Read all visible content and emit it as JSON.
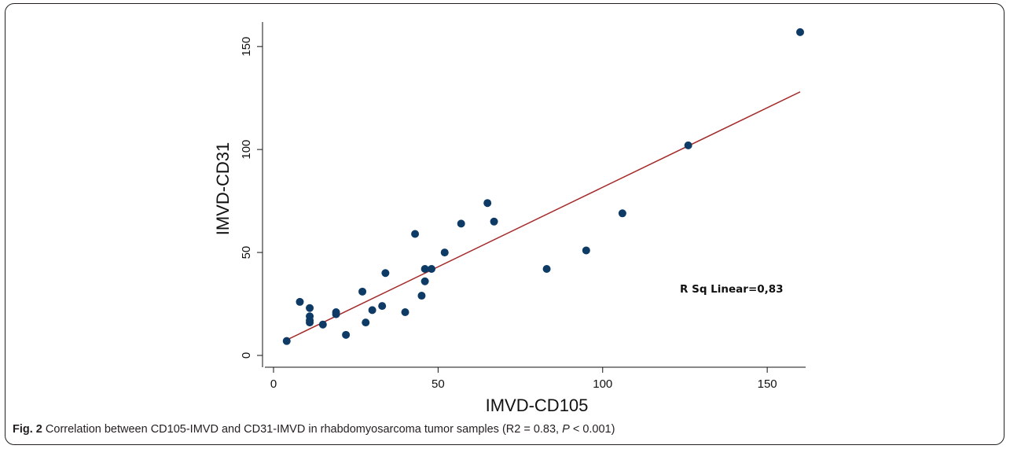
{
  "chart_data": {
    "type": "scatter",
    "xlabel": "IMVD-CD105",
    "ylabel": "IMVD-CD31",
    "xlim": [
      0,
      160
    ],
    "ylim": [
      0,
      160
    ],
    "x_ticks": [
      0,
      50,
      100,
      150
    ],
    "y_ticks": [
      0,
      50,
      100,
      150
    ],
    "grid": false,
    "point_color": "#0d3b66",
    "line_color": "#a52a2a",
    "annotation": "R Sq Linear=0,83",
    "points": [
      {
        "x": 4,
        "y": 7
      },
      {
        "x": 8,
        "y": 26
      },
      {
        "x": 11,
        "y": 19
      },
      {
        "x": 11,
        "y": 23
      },
      {
        "x": 11,
        "y": 17
      },
      {
        "x": 11,
        "y": 16
      },
      {
        "x": 15,
        "y": 15
      },
      {
        "x": 19,
        "y": 20
      },
      {
        "x": 19,
        "y": 21
      },
      {
        "x": 22,
        "y": 10
      },
      {
        "x": 27,
        "y": 31
      },
      {
        "x": 28,
        "y": 16
      },
      {
        "x": 30,
        "y": 22
      },
      {
        "x": 33,
        "y": 24
      },
      {
        "x": 34,
        "y": 40
      },
      {
        "x": 40,
        "y": 21
      },
      {
        "x": 43,
        "y": 59
      },
      {
        "x": 45,
        "y": 29
      },
      {
        "x": 46,
        "y": 42
      },
      {
        "x": 46,
        "y": 36
      },
      {
        "x": 48,
        "y": 42
      },
      {
        "x": 52,
        "y": 50
      },
      {
        "x": 57,
        "y": 64
      },
      {
        "x": 65,
        "y": 74
      },
      {
        "x": 67,
        "y": 65
      },
      {
        "x": 83,
        "y": 42
      },
      {
        "x": 95,
        "y": 51
      },
      {
        "x": 106,
        "y": 69
      },
      {
        "x": 126,
        "y": 102
      },
      {
        "x": 160,
        "y": 157
      }
    ],
    "fit_line": {
      "x": [
        4,
        160
      ],
      "y": [
        7.5,
        128
      ]
    }
  },
  "caption": {
    "fig_label": "Fig. 2",
    "text_before_p": "Correlation between CD105-IMVD and CD31-IMVD in rhabdomyosarcoma tumor samples (R2 = 0.83, ",
    "p_letter": "P",
    "text_after_p": " < 0.001)"
  }
}
